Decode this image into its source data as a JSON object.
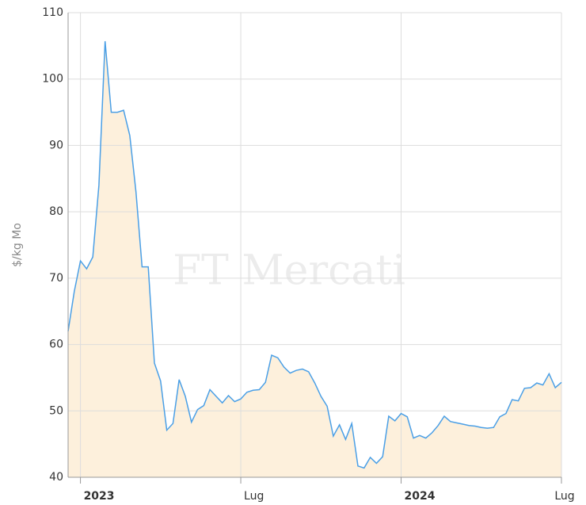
{
  "chart_data": {
    "type": "area",
    "ylabel": "$/kg Mo",
    "watermark": "FT Mercati",
    "xlim": [
      -2,
      78
    ],
    "xticks": [
      {
        "value": 0,
        "label": "2023",
        "bold": true
      },
      {
        "value": 26,
        "label": "Lug",
        "bold": false
      },
      {
        "value": 52,
        "label": "2024",
        "bold": true
      },
      {
        "value": 78,
        "label": "Lug",
        "bold": false
      }
    ],
    "ylim": [
      40,
      110
    ],
    "yticks": [
      40,
      50,
      60,
      70,
      80,
      90,
      100,
      110
    ],
    "grid": true,
    "line_color": "#4a9fe6",
    "fill_color": "#fdf0dc",
    "x": [
      -2,
      -1,
      0,
      1,
      2,
      3,
      4,
      5,
      6,
      7,
      8,
      9,
      10,
      11,
      12,
      13,
      14,
      15,
      16,
      17,
      18,
      19,
      20,
      21,
      22,
      23,
      24,
      25,
      26,
      27,
      28,
      29,
      30,
      31,
      32,
      33,
      34,
      35,
      36,
      37,
      38,
      39,
      40,
      41,
      42,
      43,
      44,
      45,
      46,
      47,
      48,
      49,
      50,
      51,
      52,
      53,
      54,
      55,
      56,
      57,
      58,
      59,
      60,
      61,
      62,
      63,
      64,
      65,
      66,
      67,
      68,
      69,
      70,
      71,
      72,
      73,
      74,
      75,
      76,
      77,
      78
    ],
    "values": [
      62,
      68,
      72.6,
      71.4,
      73.2,
      84,
      105.7,
      95,
      95,
      95.3,
      91.5,
      83,
      71.7,
      71.7,
      57.2,
      54.5,
      47.1,
      48.1,
      54.7,
      52.2,
      48.3,
      50.2,
      50.8,
      53.2,
      52.2,
      51.2,
      52.3,
      51.4,
      51.8,
      52.8,
      53.1,
      53.2,
      54.3,
      58.4,
      58,
      56.6,
      55.7,
      56.1,
      56.3,
      55.9,
      54.2,
      52.2,
      50.7,
      46.2,
      47.9,
      45.7,
      48.1,
      41.7,
      41.4,
      43,
      42.1,
      43.1,
      49.2,
      48.5,
      49.6,
      49.1,
      45.9,
      46.3,
      45.9,
      46.7,
      47.8,
      49.2,
      48.4,
      48.2,
      48,
      47.8,
      47.7,
      47.5,
      47.4,
      47.5,
      49.1,
      49.6,
      51.7,
      51.5,
      53.4,
      53.5,
      54.2,
      53.9,
      55.6,
      53.5,
      54.3
    ]
  }
}
